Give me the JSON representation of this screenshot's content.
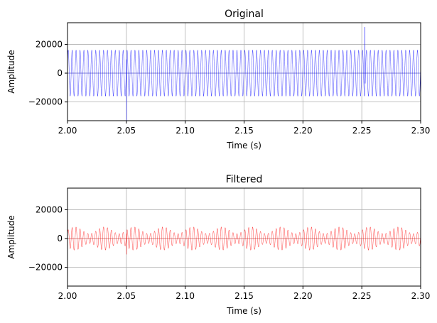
{
  "chart_data": [
    {
      "type": "line",
      "title": "Original",
      "xlabel": "Time (s)",
      "ylabel": "Amplitude",
      "xlim": [
        2.0,
        2.3
      ],
      "ylim": [
        -33000,
        35000
      ],
      "xticks": [
        2.0,
        2.05,
        2.1,
        2.15,
        2.2,
        2.25,
        2.3
      ],
      "xtick_labels": [
        "2.00",
        "2.05",
        "2.10",
        "2.15",
        "2.20",
        "2.25",
        "2.30"
      ],
      "yticks": [
        -20000,
        0,
        20000
      ],
      "ytick_labels": [
        "−20000",
        "0",
        "20000"
      ],
      "grid": true,
      "series": [
        {
          "color": "#0000ff",
          "signal": {
            "sample_rate_hz": 8000,
            "carrier_hz": 300,
            "amplitude": 16000,
            "baseline": 0,
            "spikes": [
              {
                "t": 2.0502,
                "value": -33000
              },
              {
                "t": 2.2526,
                "value": 32000
              },
              {
                "t": 2.2528,
                "value": 21000
              }
            ]
          }
        }
      ]
    },
    {
      "type": "line",
      "title": "Filtered",
      "xlabel": "Time (s)",
      "ylabel": "Amplitude",
      "xlim": [
        2.0,
        2.3
      ],
      "ylim": [
        -33000,
        35000
      ],
      "xticks": [
        2.0,
        2.05,
        2.1,
        2.15,
        2.2,
        2.25,
        2.3
      ],
      "xtick_labels": [
        "2.00",
        "2.05",
        "2.10",
        "2.15",
        "2.20",
        "2.25",
        "2.30"
      ],
      "yticks": [
        -20000,
        0,
        20000
      ],
      "ytick_labels": [
        "−20000",
        "0",
        "20000"
      ],
      "grid": true,
      "series": [
        {
          "color": "#ff0000",
          "signal": {
            "sample_rate_hz": 8000,
            "carrier_hz": 300,
            "amplitude": 5800,
            "envelope_variation": 2300,
            "envelope_hz": 40,
            "baseline": 0,
            "spikes": [
              {
                "t": 2.0502,
                "value": -11000
              }
            ]
          }
        }
      ]
    }
  ]
}
